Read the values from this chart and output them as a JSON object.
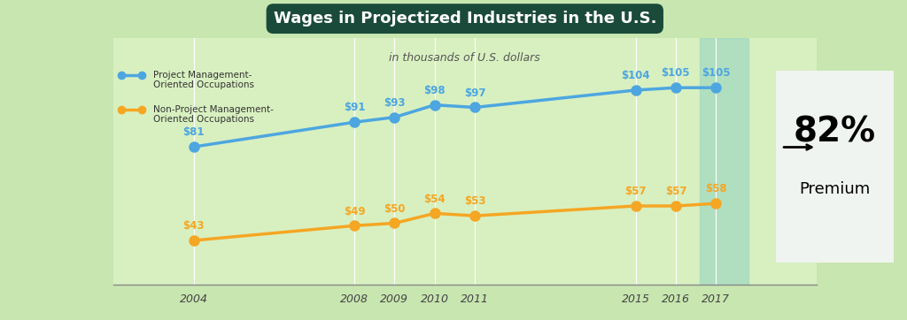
{
  "title": "Wages in Projectized Industries in the U.S.",
  "subtitle": "in thousands of U.S. dollars",
  "years": [
    2004,
    2008,
    2009,
    2010,
    2011,
    2015,
    2016,
    2017
  ],
  "pm_values": [
    81,
    91,
    93,
    98,
    97,
    104,
    105,
    105
  ],
  "npm_values": [
    43,
    49,
    50,
    54,
    53,
    57,
    57,
    58
  ],
  "pm_color": "#4da6e0",
  "npm_color": "#f5a623",
  "pm_label_line1": "Project Management-",
  "pm_label_line2": "Oriented Occupations",
  "npm_label_line1": "Non-Project Management-",
  "npm_label_line2": "Oriented Occupations",
  "bg_color": "#c8e6b0",
  "bg_inner_color": "#d8f0c0",
  "title_bg_color": "#1a4a3a",
  "title_text_color": "#ffffff",
  "highlight_year": 2017,
  "premium_text": "82%",
  "premium_label": "Premium",
  "highlight_color": "#a0d8c0",
  "premium_box_color": "#f0f4f0",
  "xlim_left": 2002,
  "xlim_right": 2019.5,
  "ylim_bottom": 25,
  "ylim_top": 125
}
